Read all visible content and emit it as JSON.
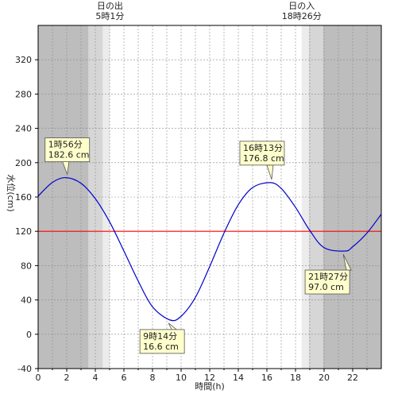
{
  "chart_data": {
    "type": "line",
    "xlabel": "時間(h)",
    "ylabel": "水位(cm)",
    "xlim": [
      0,
      24
    ],
    "ylim": [
      -40,
      360
    ],
    "x_ticks": [
      "0",
      "2",
      "4",
      "6",
      "8",
      "10",
      "12",
      "14",
      "16",
      "18",
      "20",
      "22"
    ],
    "y_ticks": [
      "-40",
      "0",
      "40",
      "80",
      "120",
      "160",
      "200",
      "240",
      "280",
      "320"
    ],
    "sunrise": {
      "label": "日の出",
      "time_text": "5時1分",
      "hour": 5.02
    },
    "sunset": {
      "label": "日の入",
      "time_text": "18時26分",
      "hour": 18.43
    },
    "reference_line": {
      "value": 120,
      "color": "#ff0000"
    },
    "series": [
      {
        "color": "#0000cc",
        "x": [
          0,
          1,
          1.93,
          3,
          4,
          5,
          6,
          7,
          8,
          9.23,
          10,
          11,
          12,
          13,
          14,
          15,
          16.22,
          17,
          18,
          19,
          20,
          21.45,
          22,
          23,
          24
        ],
        "y": [
          161,
          177,
          182.6,
          176,
          158,
          131,
          97,
          62,
          32,
          16.6,
          21,
          43,
          79,
          118,
          151,
          171,
          176.8,
          170,
          148,
          121,
          101,
          97.0,
          102,
          118,
          140
        ]
      }
    ],
    "annotations": [
      {
        "time": "1時56分",
        "value": "182.6 cm",
        "x": 1.93,
        "y": 182.6
      },
      {
        "time": "9時14分",
        "value": "16.6 cm",
        "x": 9.23,
        "y": 16.6
      },
      {
        "time": "16時13分",
        "value": "176.8 cm",
        "x": 16.22,
        "y": 176.8
      },
      {
        "time": "21時27分",
        "value": "97.0 cm",
        "x": 21.45,
        "y": 97.0
      }
    ],
    "grid": true
  }
}
